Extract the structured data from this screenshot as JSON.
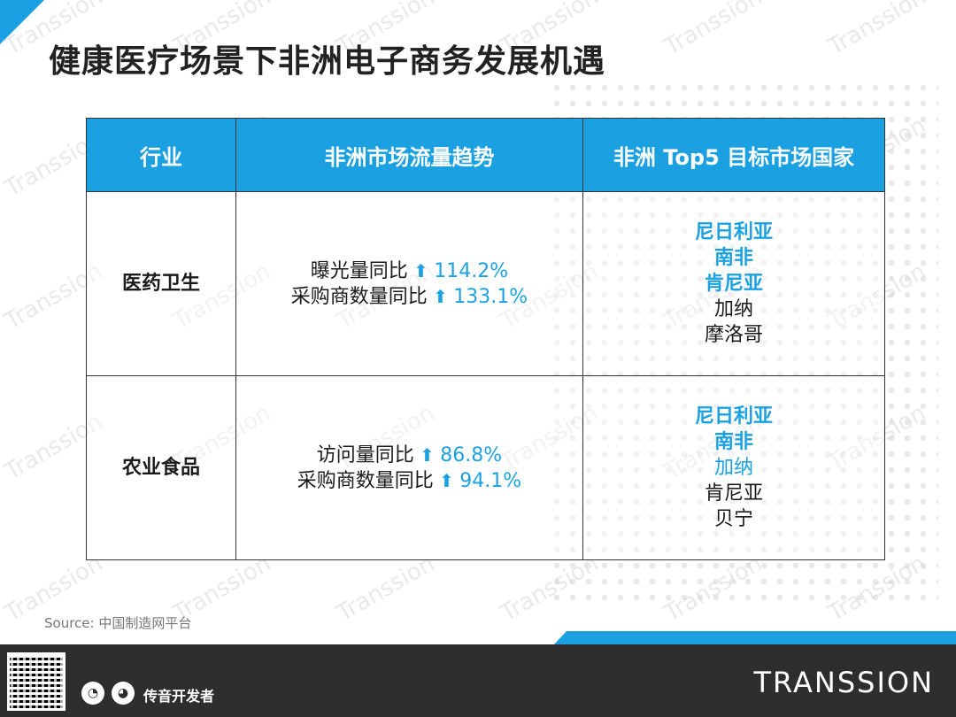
{
  "title": "健康医疗场景下非洲电子商务发展机遇",
  "watermark": "Transsion",
  "table": {
    "headers": [
      "行业",
      "非洲市场流量趋势",
      "非洲 Top5 目标市场国家"
    ],
    "rows": [
      {
        "industry": "医药卫生",
        "trends": [
          {
            "label": "曝光量同比",
            "value": "114.2%"
          },
          {
            "label": "采购商数量同比",
            "value": "133.1%"
          }
        ],
        "countries": [
          {
            "name": "尼日利亚",
            "style": "highlight"
          },
          {
            "name": "南非",
            "style": "highlight"
          },
          {
            "name": "肯尼亚",
            "style": "highlight"
          },
          {
            "name": "加纳",
            "style": "normal"
          },
          {
            "name": "摩洛哥",
            "style": "normal"
          }
        ]
      },
      {
        "industry": "农业食品",
        "trends": [
          {
            "label": "访问量同比",
            "value": "86.8%"
          },
          {
            "label": "采购商数量同比",
            "value": "94.1%"
          }
        ],
        "countries": [
          {
            "name": "尼日利亚",
            "style": "highlight"
          },
          {
            "name": "南非",
            "style": "highlight"
          },
          {
            "name": "加纳",
            "style": "light"
          },
          {
            "name": "肯尼亚",
            "style": "normal"
          },
          {
            "name": "贝宁",
            "style": "normal"
          }
        ]
      }
    ]
  },
  "source": "Source:   中国制造网平台",
  "footer": {
    "dev_label": "传音开发者",
    "logo": "TRANSSION",
    "icons": [
      "wechat-icon",
      "weibo-icon"
    ]
  },
  "colors": {
    "accent": "#1ba1e2",
    "footer_bg": "#2e2e2e"
  }
}
